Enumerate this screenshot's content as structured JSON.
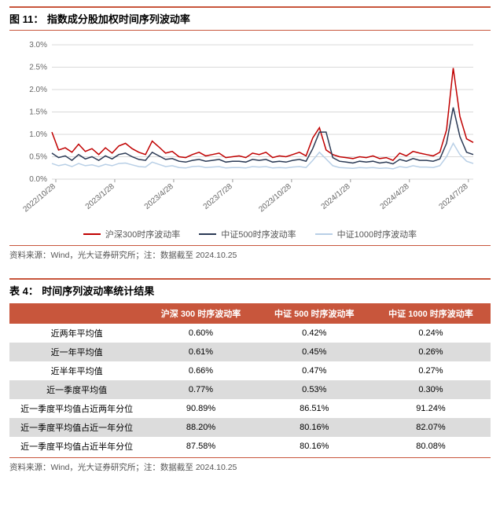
{
  "figure": {
    "label": "图 11：",
    "title": "指数成分股加权时间序列波动率",
    "source": "资料来源：Wind，光大证券研究所；注：数据截至 2024.10.25",
    "chart": {
      "type": "line",
      "background_color": "#ffffff",
      "grid_color": "#d9d9d9",
      "ylim": [
        0,
        3.0
      ],
      "ytick_step": 0.5,
      "ytick_format_suffix": "%",
      "yticks": [
        "0.0%",
        "0.5%",
        "1.0%",
        "1.5%",
        "2.0%",
        "2.5%",
        "3.0%"
      ],
      "xticks": [
        "2022/10/28",
        "2023/1/28",
        "2023/4/28",
        "2023/7/28",
        "2023/10/28",
        "2024/1/28",
        "2024/4/28",
        "2024/7/28"
      ],
      "label_fontsize": 10,
      "line_width": 1.5,
      "series": [
        {
          "name": "沪深300时序波动率",
          "color": "#c00000",
          "values": [
            1.05,
            0.65,
            0.7,
            0.6,
            0.78,
            0.62,
            0.68,
            0.55,
            0.7,
            0.58,
            0.74,
            0.8,
            0.68,
            0.6,
            0.55,
            0.85,
            0.72,
            0.58,
            0.62,
            0.5,
            0.48,
            0.55,
            0.6,
            0.52,
            0.55,
            0.58,
            0.48,
            0.5,
            0.52,
            0.48,
            0.58,
            0.55,
            0.6,
            0.48,
            0.52,
            0.5,
            0.55,
            0.6,
            0.52,
            0.92,
            1.15,
            0.65,
            0.55,
            0.5,
            0.48,
            0.46,
            0.5,
            0.48,
            0.52,
            0.46,
            0.48,
            0.42,
            0.58,
            0.52,
            0.62,
            0.58,
            0.55,
            0.52,
            0.6,
            1.1,
            2.48,
            1.4,
            0.9,
            0.82
          ]
        },
        {
          "name": "中证500时序波动率",
          "color": "#2b3a55",
          "values": [
            0.58,
            0.48,
            0.52,
            0.42,
            0.55,
            0.45,
            0.5,
            0.42,
            0.52,
            0.45,
            0.55,
            0.58,
            0.5,
            0.44,
            0.42,
            0.6,
            0.52,
            0.44,
            0.46,
            0.4,
            0.38,
            0.42,
            0.44,
            0.4,
            0.42,
            0.44,
            0.38,
            0.4,
            0.4,
            0.38,
            0.44,
            0.42,
            0.44,
            0.38,
            0.4,
            0.38,
            0.42,
            0.44,
            0.4,
            0.68,
            1.05,
            1.05,
            0.48,
            0.4,
            0.38,
            0.36,
            0.4,
            0.38,
            0.4,
            0.36,
            0.38,
            0.34,
            0.44,
            0.4,
            0.46,
            0.42,
            0.42,
            0.4,
            0.45,
            0.8,
            1.6,
            0.95,
            0.6,
            0.55
          ]
        },
        {
          "name": "中证1000时序波动率",
          "color": "#b8cfe6",
          "values": [
            0.35,
            0.3,
            0.33,
            0.28,
            0.35,
            0.3,
            0.32,
            0.28,
            0.33,
            0.3,
            0.35,
            0.36,
            0.32,
            0.28,
            0.27,
            0.38,
            0.33,
            0.28,
            0.3,
            0.26,
            0.25,
            0.28,
            0.29,
            0.26,
            0.27,
            0.28,
            0.25,
            0.26,
            0.26,
            0.25,
            0.28,
            0.27,
            0.28,
            0.25,
            0.26,
            0.25,
            0.27,
            0.28,
            0.26,
            0.42,
            0.6,
            0.45,
            0.3,
            0.26,
            0.25,
            0.24,
            0.26,
            0.25,
            0.26,
            0.24,
            0.25,
            0.23,
            0.28,
            0.26,
            0.3,
            0.27,
            0.27,
            0.26,
            0.3,
            0.5,
            0.8,
            0.55,
            0.4,
            0.35
          ]
        }
      ]
    }
  },
  "table": {
    "label": "表 4：",
    "title": "时间序列波动率统计结果",
    "source": "资料来源：Wind，光大证券研究所；注：数据截至 2024.10.25",
    "header_bg": "#c8563c",
    "shade_bg": "#dcdcdc",
    "columns": [
      "",
      "沪深 300 时序波动率",
      "中证 500 时序波动率",
      "中证 1000 时序波动率"
    ],
    "rows": [
      {
        "shaded": false,
        "cells": [
          "近两年平均值",
          "0.60%",
          "0.42%",
          "0.24%"
        ]
      },
      {
        "shaded": true,
        "cells": [
          "近一年平均值",
          "0.61%",
          "0.45%",
          "0.26%"
        ]
      },
      {
        "shaded": false,
        "cells": [
          "近半年平均值",
          "0.66%",
          "0.47%",
          "0.27%"
        ]
      },
      {
        "shaded": true,
        "cells": [
          "近一季度平均值",
          "0.77%",
          "0.53%",
          "0.30%"
        ]
      },
      {
        "shaded": false,
        "cells": [
          "近一季度平均值占近两年分位",
          "90.89%",
          "86.51%",
          "91.24%"
        ]
      },
      {
        "shaded": true,
        "cells": [
          "近一季度平均值占近一年分位",
          "88.20%",
          "80.16%",
          "82.07%"
        ]
      },
      {
        "shaded": false,
        "cells": [
          "近一季度平均值占近半年分位",
          "87.58%",
          "80.16%",
          "80.08%"
        ]
      }
    ]
  }
}
